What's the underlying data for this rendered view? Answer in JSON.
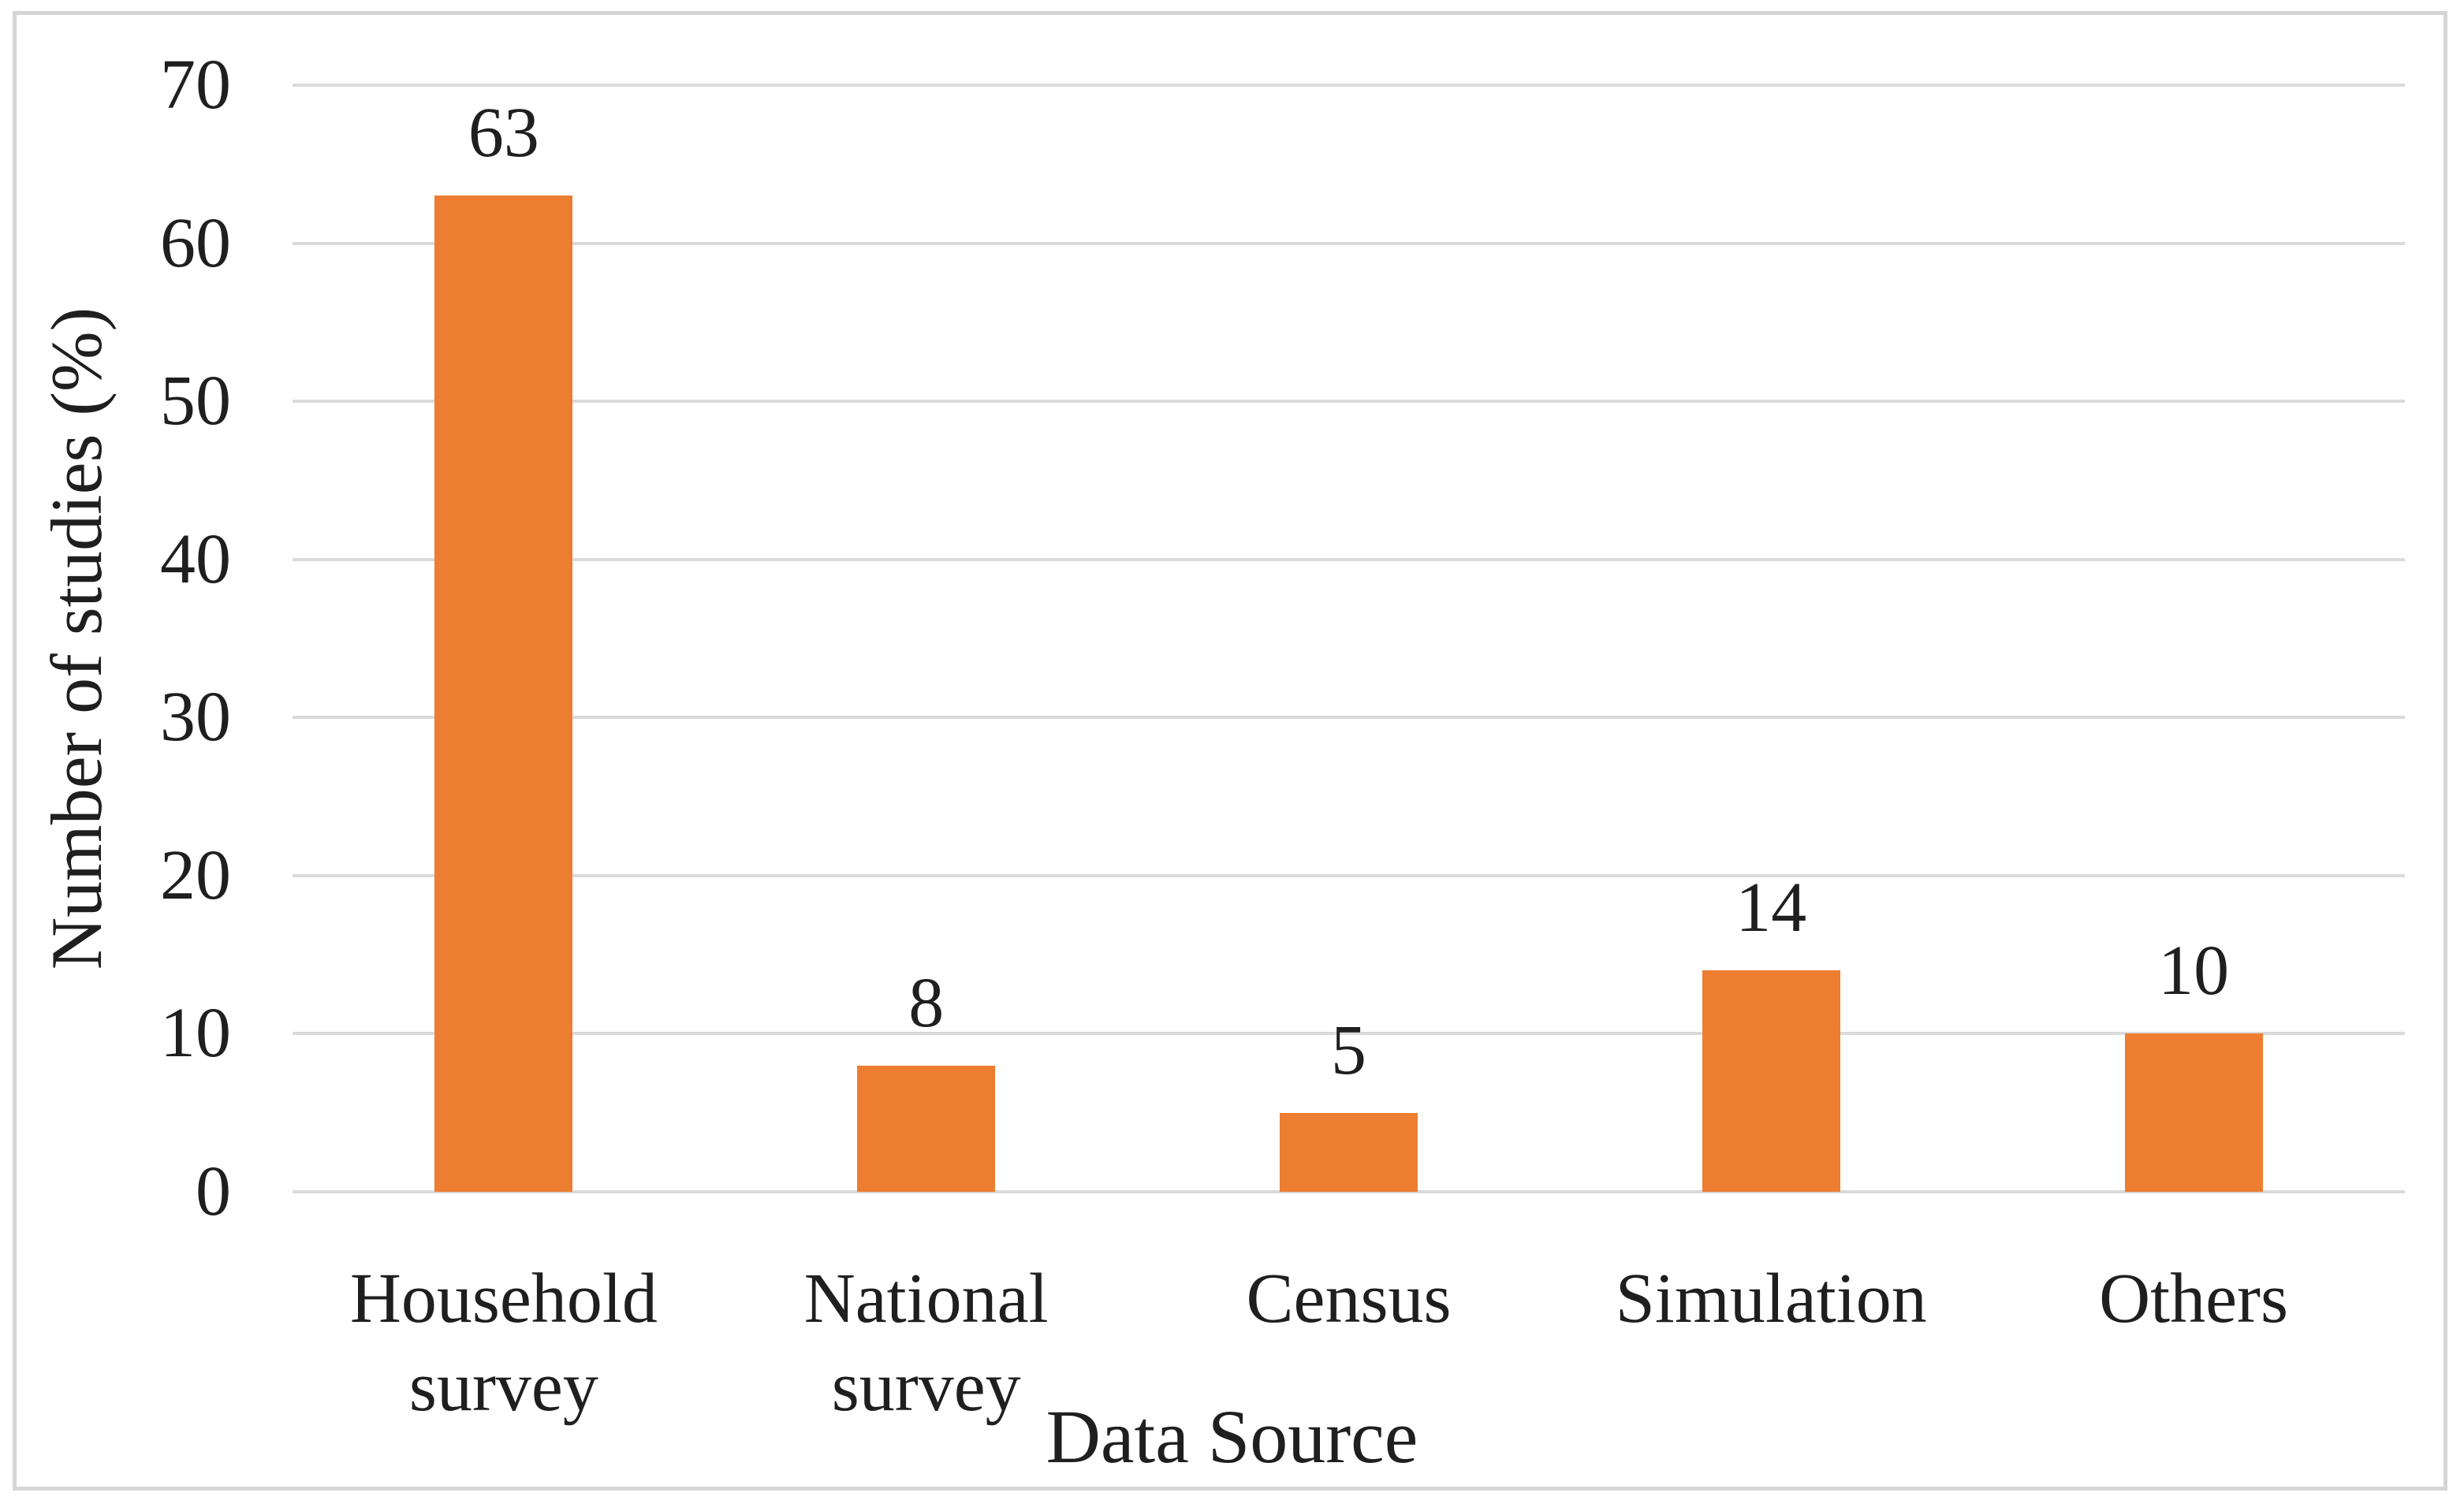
{
  "chart_data": {
    "type": "bar",
    "title": "",
    "categories": [
      "Household survey",
      "National survey",
      "Census",
      "Simulation",
      "Others"
    ],
    "values": [
      63,
      8,
      5,
      14,
      10
    ],
    "data_labels": [
      "63",
      "8",
      "5",
      "14",
      "10"
    ],
    "xlabel": "Data Source",
    "ylabel": "Number of studies (%)",
    "ylim": [
      0,
      70
    ],
    "yticks": [
      0,
      10,
      20,
      30,
      40,
      50,
      60,
      70
    ],
    "ytick_labels": [
      "0",
      "10",
      "20",
      "30",
      "40",
      "50",
      "60",
      "70"
    ],
    "grid": "horizontal",
    "legend_position": "none",
    "colors": {
      "bar": "#ED7D31",
      "gridline": "#DADADA",
      "axis_line": "#DADADA",
      "text": "#1F1F1F",
      "frame_border": "#D5D5D5",
      "background": "#FFFFFF"
    }
  }
}
